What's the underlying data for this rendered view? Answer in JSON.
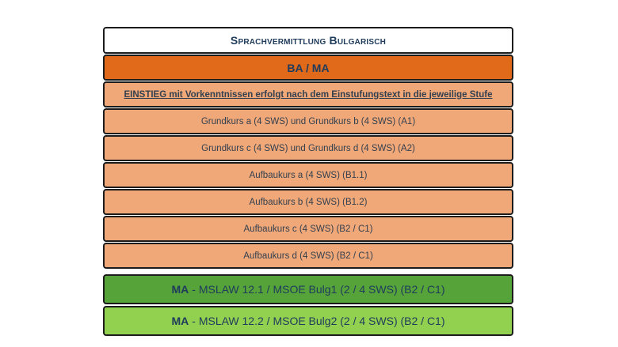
{
  "title": "Sprachvermittlung Bulgarisch",
  "level_group": "BA / MA",
  "entry_note": "EINSTIEG mit Vorkenntnissen  erfolgt nach dem Einstufungstext  in die jeweilige Stufe",
  "courses": [
    "Grundkurs  a (4 SWS) und Grundkurs  b (4 SWS) (A1)",
    "Grundkurs  c (4 SWS)  und Grundkurs  d (4 SWS) (A2)",
    "Aufbaukurs  a (4 SWS) (B1.1)",
    "Aufbaukurs  b (4 SWS) (B1.2)",
    "Aufbaukurs  c (4 SWS) (B2 / C1)",
    "Aufbaukurs  d (4 SWS) (B2 / C1)"
  ],
  "ma_modules": [
    {
      "prefix": "MA",
      "text": "- MSLAW 12.1 / MSOE Bulg1 (2 / 4 SWS) (B2 / C1)"
    },
    {
      "prefix": "MA",
      "text": "- MSLAW 12.2 / MSOE Bulg2 (2 / 4 SWS) (B2 / C1)"
    }
  ],
  "colors": {
    "title_bg": "#ffffff",
    "bama_bg": "#e06a1a",
    "level_bg": "#f0a878",
    "ma1_bg": "#56a33a",
    "ma2_bg": "#92d050",
    "text_dark_blue": "#1f3b5c"
  }
}
